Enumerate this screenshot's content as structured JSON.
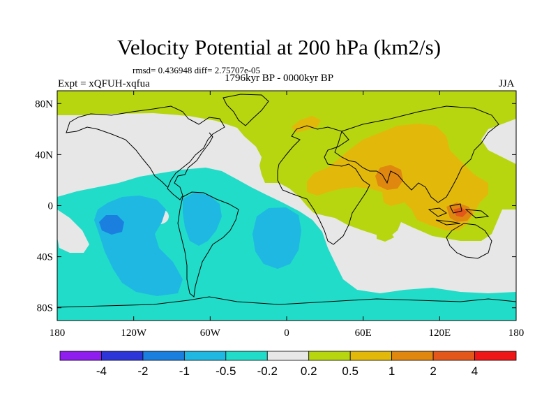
{
  "title": "Velocity Potential at 200 hPa (km2/s)",
  "stats": "rmsd= 0.436948 diff= 2.75707e-05",
  "experiment": "Expt = xQFUH-xqfua",
  "period": "1796kyr BP - 0000kyr BP",
  "season": "JJA",
  "map": {
    "lat_labels": [
      "80N",
      "40N",
      "0",
      "40S",
      "80S"
    ],
    "lat_values": [
      80,
      40,
      0,
      -40,
      -80
    ],
    "lon_labels": [
      "180",
      "120W",
      "60W",
      "0",
      "60E",
      "120E",
      "180"
    ],
    "lon_values": [
      -180,
      -120,
      -60,
      0,
      60,
      120,
      180
    ]
  },
  "colorbar": {
    "colors": [
      "#8f1df0",
      "#2e35d8",
      "#1b7fe0",
      "#1fb8e3",
      "#21dcc8",
      "#e7e7e7",
      "#b7d60f",
      "#e2b90b",
      "#e08710",
      "#e3581a",
      "#ee1616"
    ],
    "labels": [
      "-4",
      "-2",
      "-1",
      "-0.5",
      "-0.2",
      "0.2",
      "0.5",
      "1",
      "2",
      "4"
    ]
  },
  "fill_colors": {
    "background_grey": "#e7e7e7",
    "neg_02": "#21dcc8",
    "neg_05": "#1fb8e3",
    "neg_1": "#1b7fe0",
    "pos_02": "#b7d60f",
    "pos_05": "#e2b90b",
    "pos_1": "#e08710",
    "pos_2": "#e3581a"
  }
}
